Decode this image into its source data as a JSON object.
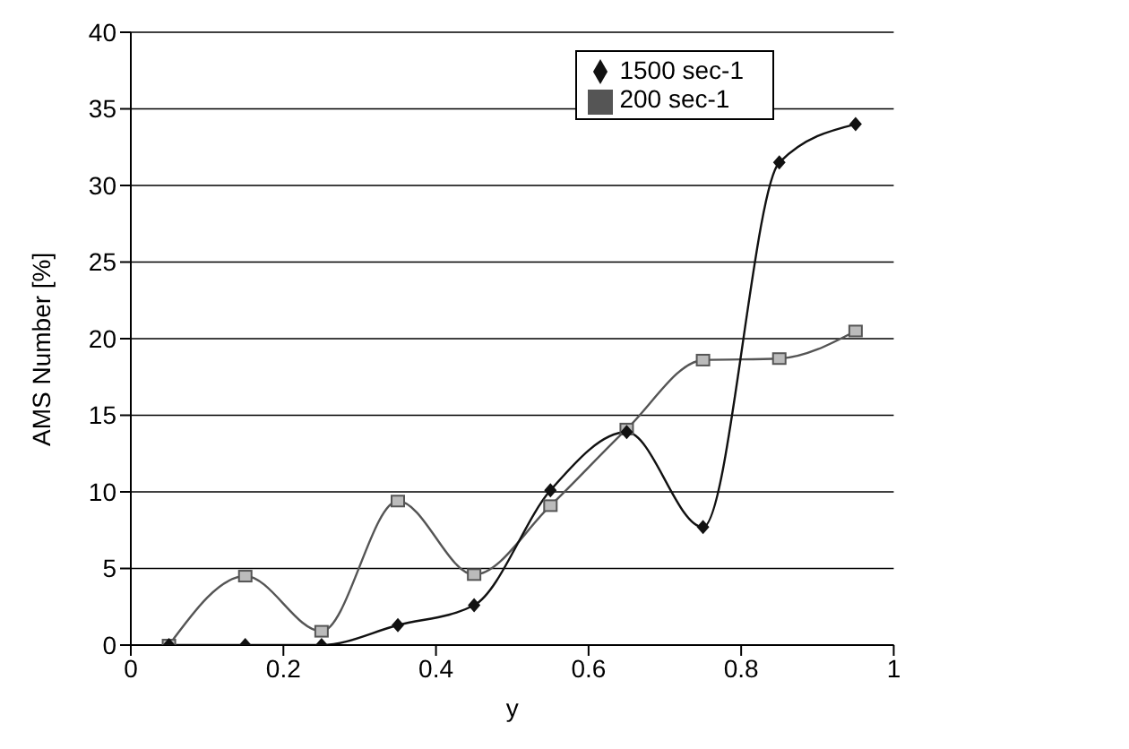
{
  "chart_data": {
    "type": "line",
    "xlabel": "y",
    "ylabel": "AMS Number [%]",
    "x": [
      0.05,
      0.15,
      0.25,
      0.35,
      0.45,
      0.55,
      0.65,
      0.75,
      0.85,
      0.95
    ],
    "series": [
      {
        "name": "1500 sec-1",
        "color": "#111111",
        "marker": "diamond",
        "values": [
          0,
          0,
          0,
          1.3,
          2.6,
          10.1,
          13.9,
          7.7,
          31.5,
          34.0
        ]
      },
      {
        "name": "200 sec-1",
        "color": "#555555",
        "marker": "square",
        "values": [
          0,
          4.5,
          0.9,
          9.4,
          4.6,
          9.1,
          14.1,
          18.6,
          18.7,
          20.5
        ]
      }
    ],
    "xlim": [
      0,
      1
    ],
    "xticks": [
      0,
      0.2,
      0.4,
      0.6,
      0.8,
      {
        "value": 1,
        "label": "1"
      }
    ],
    "ylim": [
      0,
      40
    ],
    "yticks": [
      0,
      5,
      10,
      15,
      20,
      25,
      30,
      35,
      40
    ],
    "grid": "y",
    "legend": "top right",
    "line_style": "solid"
  }
}
